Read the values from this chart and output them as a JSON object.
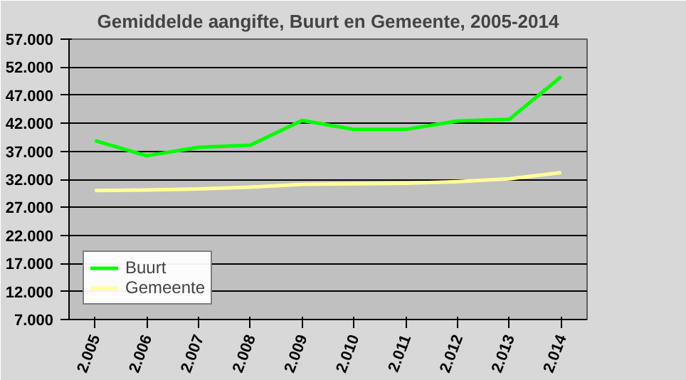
{
  "chart_data": {
    "type": "line",
    "title": "Gemiddelde aangifte, Buurt en Gemeente, 2005-2014",
    "categories": [
      "2.005",
      "2.006",
      "2.007",
      "2.008",
      "2.009",
      "2.010",
      "2.011",
      "2.012",
      "2.013",
      "2.014"
    ],
    "series": [
      {
        "name": "Buurt",
        "color": "#00ff00",
        "values": [
          38900,
          36200,
          37700,
          38100,
          42500,
          40900,
          40900,
          42400,
          42700,
          50300
        ]
      },
      {
        "name": "Gemeente",
        "color": "#ffff99",
        "values": [
          30000,
          30100,
          30300,
          30600,
          31100,
          31200,
          31300,
          31600,
          32100,
          33200
        ]
      }
    ],
    "ylim": [
      7000,
      57000
    ],
    "yticks": [
      {
        "value": 7000,
        "label": "7.000"
      },
      {
        "value": 12000,
        "label": "12.000"
      },
      {
        "value": 17000,
        "label": "17.000"
      },
      {
        "value": 22000,
        "label": "22.000"
      },
      {
        "value": 27000,
        "label": "27.000"
      },
      {
        "value": 32000,
        "label": "32.000"
      },
      {
        "value": 37000,
        "label": "37.000"
      },
      {
        "value": 42000,
        "label": "42.000"
      },
      {
        "value": 47000,
        "label": "47.000"
      },
      {
        "value": 52000,
        "label": "52.000"
      },
      {
        "value": 57000,
        "label": "57.000"
      }
    ],
    "grid": "y",
    "legend": "bottom left",
    "marker": "none",
    "line_style": "solid"
  }
}
